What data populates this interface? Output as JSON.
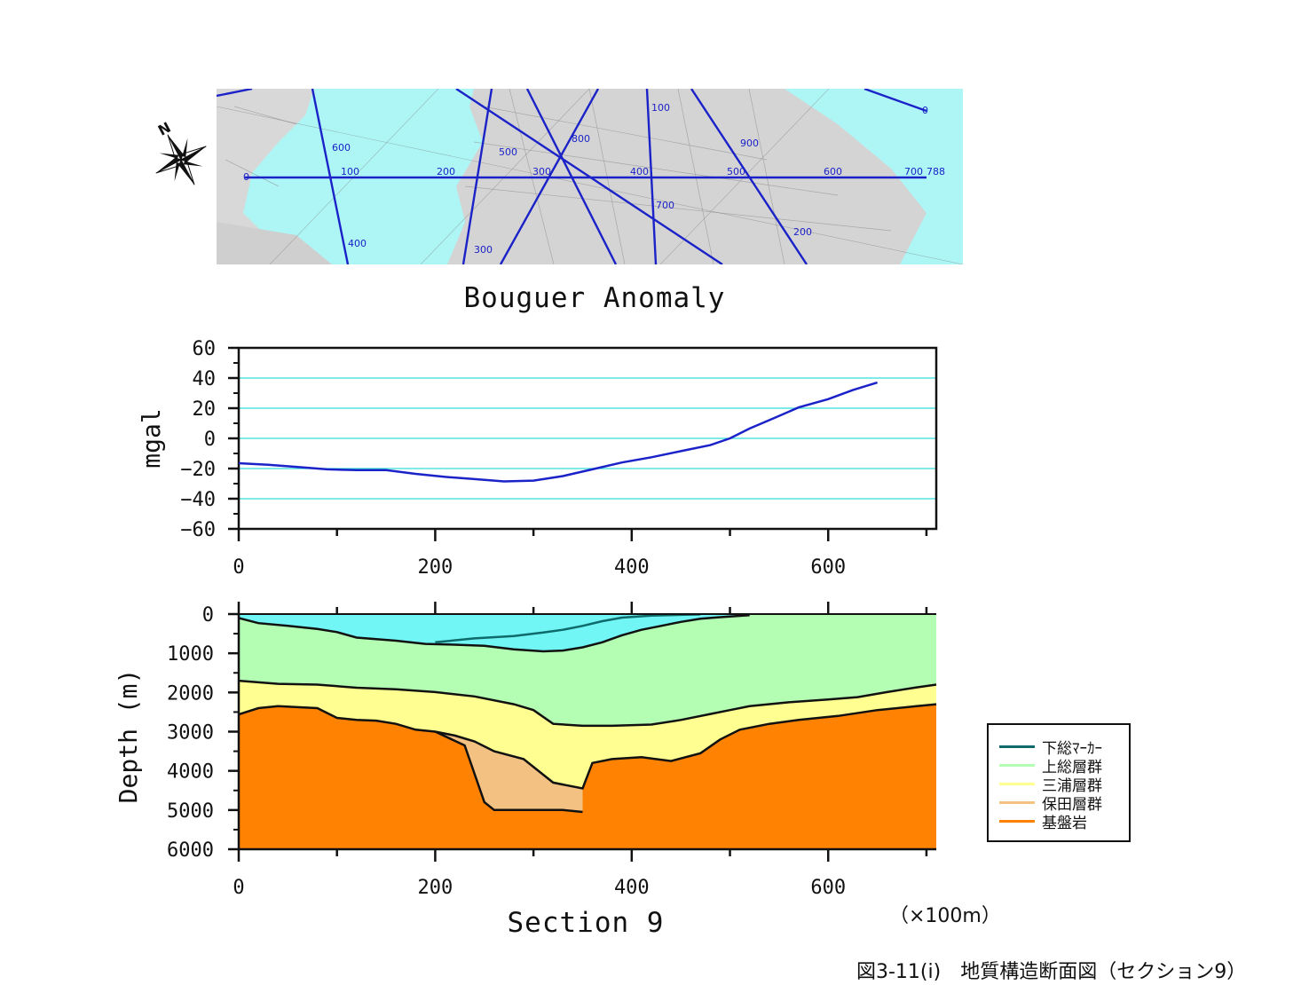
{
  "title": "Bouguer Anomaly",
  "section_title": "Section 9",
  "unit_note": "（×100m）",
  "caption": "図3-11(i)　地質構造断面図（セクション9）",
  "map": {
    "scale_labels": [
      "0",
      "100",
      "200",
      "300",
      "400",
      "500",
      "600",
      "700",
      "788",
      "0",
      "100",
      "200",
      "300",
      "400",
      "500",
      "600",
      "700",
      "800",
      "900"
    ]
  },
  "colors": {
    "sea": "#aef6f6",
    "land": "#d6d6d6",
    "track": "#1a22c8",
    "gridline": "#33dddd",
    "kazusa": "#b4feb4",
    "miura": "#ffff91",
    "hota": "#f3c181",
    "basement": "#ff8202",
    "shimosa": "#0f6b6b",
    "water": "#71f5f5"
  },
  "chart_data": [
    {
      "type": "line",
      "title": "Bouguer Anomaly",
      "xlabel": "",
      "ylabel": "mgal",
      "xlim": [
        0,
        700
      ],
      "ylim": [
        -60,
        60
      ],
      "xticks": [
        0,
        200,
        400,
        600
      ],
      "yticks": [
        60,
        40,
        20,
        0,
        -20,
        -40,
        -60
      ],
      "grid": true,
      "series": [
        {
          "x": [
            0,
            30,
            60,
            90,
            120,
            150,
            180,
            210,
            240,
            270,
            300,
            330,
            360,
            390,
            420,
            450,
            480,
            500,
            520,
            545,
            570,
            600,
            625,
            650
          ],
          "y": [
            -16.5,
            -17.5,
            -19,
            -20.5,
            -21,
            -21,
            -23.5,
            -25.5,
            -27,
            -28.5,
            -28,
            -25,
            -20.5,
            -16,
            -12.5,
            -8.5,
            -4.5,
            0,
            6.5,
            13.5,
            20.5,
            26,
            32,
            37
          ]
        }
      ]
    },
    {
      "type": "area",
      "title": "",
      "xlabel": "Section 9",
      "ylabel": "Depth (m)",
      "xlim": [
        0,
        710
      ],
      "ylim": [
        6000,
        0
      ],
      "xticks": [
        0,
        200,
        400,
        600
      ],
      "yticks": [
        0,
        1000,
        2000,
        3000,
        4000,
        5000,
        6000
      ],
      "legend_position": "right",
      "legend": [
        "下総ﾏｰｶｰ",
        "上総層群",
        "三浦層群",
        "保田層群",
        "基盤岩"
      ],
      "series": [
        {
          "name": "sea_floor",
          "x": [
            0,
            20,
            50,
            80,
            100,
            120,
            160,
            190,
            220,
            250,
            280,
            310,
            330,
            350,
            370,
            390,
            410,
            430,
            450,
            470,
            490,
            520
          ],
          "y": [
            100,
            230,
            300,
            380,
            460,
            600,
            680,
            760,
            780,
            810,
            900,
            950,
            930,
            850,
            720,
            540,
            400,
            300,
            200,
            120,
            80,
            30
          ]
        },
        {
          "name": "下総ﾏｰｶｰ",
          "x": [
            200,
            240,
            280,
            310,
            330,
            350,
            370,
            390,
            420,
            450,
            470
          ],
          "y": [
            720,
            620,
            560,
            470,
            400,
            300,
            180,
            90,
            40,
            20,
            10
          ]
        },
        {
          "name": "上総層群",
          "x": [
            0,
            40,
            80,
            120,
            160,
            200,
            240,
            280,
            300,
            320,
            350,
            380,
            420,
            450,
            480,
            500,
            520,
            560,
            600,
            630,
            660,
            690,
            710
          ],
          "y": [
            1700,
            1780,
            1800,
            1880,
            1920,
            1990,
            2100,
            2300,
            2450,
            2800,
            2850,
            2850,
            2820,
            2700,
            2550,
            2450,
            2350,
            2250,
            2180,
            2120,
            1990,
            1870,
            1800
          ]
        },
        {
          "name": "三浦層群",
          "x": [
            0,
            20,
            40,
            80,
            100,
            120,
            140,
            160,
            180,
            200,
            220,
            240,
            260,
            290,
            320,
            350,
            360,
            380,
            410,
            440,
            470,
            490,
            510,
            540,
            570,
            610,
            650,
            690,
            710
          ],
          "y": [
            2560,
            2400,
            2350,
            2400,
            2650,
            2700,
            2720,
            2800,
            2950,
            3000,
            3100,
            3250,
            3500,
            3700,
            4300,
            4450,
            3800,
            3700,
            3650,
            3750,
            3550,
            3200,
            2950,
            2800,
            2700,
            2600,
            2450,
            2350,
            2300
          ]
        },
        {
          "name": "保田層群",
          "x": [
            200,
            230,
            250,
            260,
            290,
            330,
            350
          ],
          "y": [
            3000,
            3350,
            4800,
            5000,
            5000,
            5000,
            5050
          ]
        },
        {
          "name": "基盤岩",
          "x": [
            0,
            710
          ],
          "y": [
            6000,
            6000
          ]
        }
      ]
    }
  ]
}
